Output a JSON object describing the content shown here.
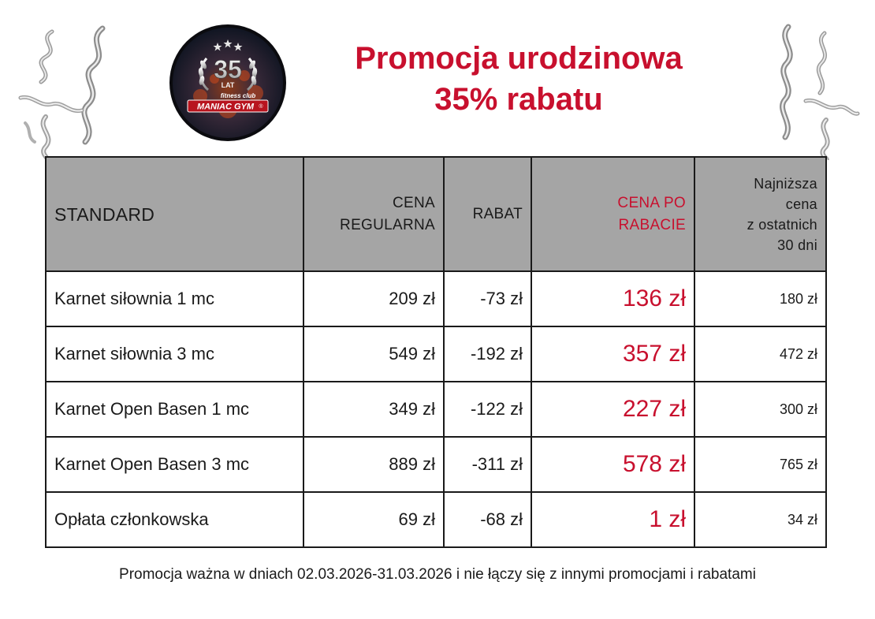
{
  "header": {
    "title_line1": "Promocja urodzinowa",
    "title_line2": "35% rabatu"
  },
  "logo": {
    "number": "35",
    "lat": "LAT",
    "tagline": "fitness club",
    "brand": "MANIAC GYM",
    "mark": "®"
  },
  "table": {
    "headers": {
      "name": "STANDARD",
      "regular": [
        "CENA",
        "REGULARNA"
      ],
      "discount": [
        "RABAT"
      ],
      "after": [
        "CENA PO",
        "RABACIE"
      ],
      "lowest": [
        "Najniższa",
        "cena",
        "z ostatnich",
        "30 dni"
      ]
    },
    "rows": [
      {
        "name": "Karnet siłownia 1 mc",
        "regular": "209 zł",
        "discount": "-73 zł",
        "after": "136 zł",
        "lowest": "180 zł"
      },
      {
        "name": "Karnet siłownia 3 mc",
        "regular": "549 zł",
        "discount": "-192 zł",
        "after": "357 zł",
        "lowest": "472 zł"
      },
      {
        "name": "Karnet Open Basen 1 mc",
        "regular": "349 zł",
        "discount": "-122 zł",
        "after": "227 zł",
        "lowest": "300 zł"
      },
      {
        "name": "Karnet Open Basen 3 mc",
        "regular": "889 zł",
        "discount": "-311 zł",
        "after": "578 zł",
        "lowest": "765 zł"
      },
      {
        "name": "Opłata członkowska",
        "regular": "69 zł",
        "discount": "-68 zł",
        "after": "1 zł",
        "lowest": "34 zł"
      }
    ]
  },
  "footer": {
    "text": "Promocja ważna w dniach 02.03.2026-31.03.2026 i nie łączy się z innymi promocjami i rabatami"
  },
  "colors": {
    "accent_red": "#c8102e",
    "header_gray": "#a5a5a5",
    "border": "#1a1a1a"
  },
  "icons": {
    "logo": "gym-badge-logo",
    "decor_left": "silver-streamer-icon",
    "decor_right": "silver-streamer-icon"
  }
}
